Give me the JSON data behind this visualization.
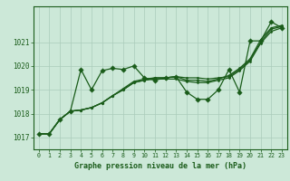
{
  "background_color": "#cce8d8",
  "line_color": "#1a5c1a",
  "grid_color": "#aaccbb",
  "xlabel": "Graphe pression niveau de la mer (hPa)",
  "ylim": [
    1016.5,
    1022.5
  ],
  "xlim": [
    -0.5,
    23.5
  ],
  "yticks": [
    1017,
    1018,
    1019,
    1020,
    1021
  ],
  "xticks": [
    0,
    1,
    2,
    3,
    4,
    5,
    6,
    7,
    8,
    9,
    10,
    11,
    12,
    13,
    14,
    15,
    16,
    17,
    18,
    19,
    20,
    21,
    22,
    23
  ],
  "series": [
    [
      1017.15,
      1017.15,
      1017.75,
      1018.1,
      1019.85,
      1019.0,
      1019.8,
      1019.9,
      1019.85,
      1020.0,
      1019.5,
      1019.4,
      1019.5,
      1019.55,
      1018.9,
      1018.6,
      1018.6,
      1019.0,
      1019.85,
      1018.9,
      1021.05,
      1021.05,
      1021.85,
      1021.6
    ],
    [
      1017.15,
      1017.15,
      1017.75,
      1018.1,
      1018.15,
      1018.25,
      1018.45,
      1018.75,
      1019.05,
      1019.35,
      1019.45,
      1019.5,
      1019.5,
      1019.55,
      1019.5,
      1019.5,
      1019.45,
      1019.5,
      1019.55,
      1019.85,
      1020.25,
      1021.0,
      1021.55,
      1021.65
    ],
    [
      1017.15,
      1017.15,
      1017.75,
      1018.1,
      1018.15,
      1018.25,
      1018.45,
      1018.75,
      1019.0,
      1019.3,
      1019.4,
      1019.45,
      1019.45,
      1019.45,
      1019.35,
      1019.3,
      1019.3,
      1019.4,
      1019.5,
      1019.8,
      1020.2,
      1020.95,
      1021.45,
      1021.6
    ],
    [
      1017.15,
      1017.15,
      1017.75,
      1018.1,
      1018.15,
      1018.25,
      1018.45,
      1018.75,
      1019.0,
      1019.3,
      1019.4,
      1019.5,
      1019.5,
      1019.55,
      1019.4,
      1019.4,
      1019.35,
      1019.45,
      1019.6,
      1019.9,
      1020.3,
      1021.1,
      1021.6,
      1021.7
    ]
  ]
}
